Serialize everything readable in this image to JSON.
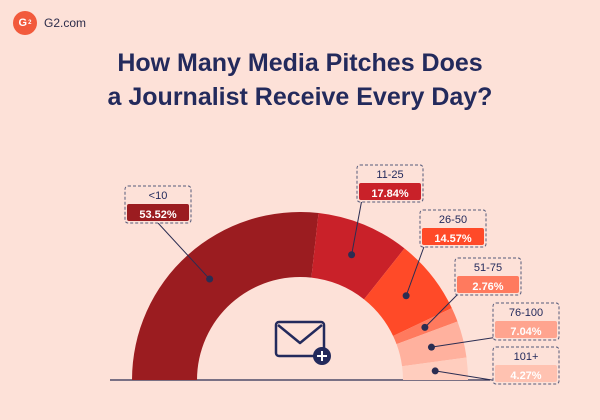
{
  "brand": {
    "logo_text": "G",
    "logo_sup": "2",
    "name": "G2.com"
  },
  "title_lines": [
    "How Many Media Pitches Does",
    "a Journalist Receive Every Day?"
  ],
  "icon": "envelope-plus-icon",
  "chart_data": {
    "type": "pie",
    "subtype": "semi-donut",
    "title": "How Many Media Pitches Does a Journalist Receive Every Day?",
    "categories": [
      "<10",
      "11-25",
      "26-50",
      "51-75",
      "76-100",
      "101+"
    ],
    "values": [
      53.52,
      17.84,
      14.57,
      2.76,
      7.04,
      4.27
    ],
    "value_labels": [
      "53.52%",
      "17.84%",
      "14.57%",
      "2.76%",
      "7.04%",
      "4.27%"
    ],
    "colors": [
      "#9b1c20",
      "#c92129",
      "#ff4a28",
      "#ff7a5e",
      "#ffb19e",
      "#ffcdbe"
    ],
    "label_colors": [
      "#9b1c20",
      "#c92129",
      "#ff4a28",
      "#ff7a5e",
      "#ffa48f",
      "#ffc2b1"
    ]
  }
}
